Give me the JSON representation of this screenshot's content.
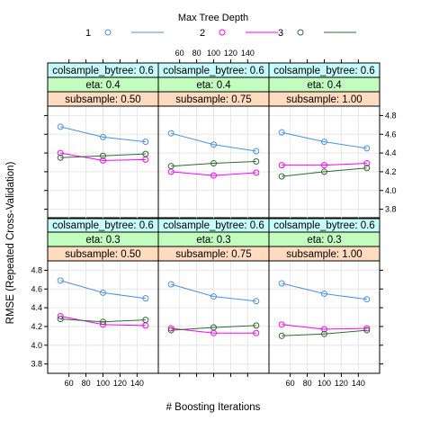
{
  "chart_data": {
    "type": "line",
    "legend": {
      "title": "Max Tree Depth",
      "placement": "top",
      "entries": [
        {
          "name": "1",
          "color": "#4a90e2"
        },
        {
          "name": "2",
          "color": "#ff00ff"
        },
        {
          "name": "3",
          "color": "#2e6b2e"
        }
      ]
    },
    "xlabel": "# Boosting Iterations",
    "ylabel": "RMSE (Repeated Cross-Validation)",
    "x": [
      50,
      100,
      150
    ],
    "xlim": [
      35,
      165
    ],
    "ylim": [
      3.7,
      4.9
    ],
    "x_ticks": [
      60,
      80,
      100,
      120,
      140
    ],
    "y_ticks": [
      3.8,
      4.0,
      4.2,
      4.4,
      4.6,
      4.8
    ],
    "grid": true,
    "panels": [
      {
        "row": 0,
        "col": 0,
        "strips": [
          "colsample_bytree: 0.6",
          "eta: 0.3",
          "subsample: 0.50"
        ],
        "series": [
          {
            "name": "1",
            "values": [
              4.69,
              4.56,
              4.5
            ]
          },
          {
            "name": "2",
            "values": [
              4.31,
              4.22,
              4.21
            ]
          },
          {
            "name": "3",
            "values": [
              4.28,
              4.25,
              4.27
            ]
          }
        ]
      },
      {
        "row": 0,
        "col": 1,
        "strips": [
          "colsample_bytree: 0.6",
          "eta: 0.3",
          "subsample: 0.75"
        ],
        "series": [
          {
            "name": "1",
            "values": [
              4.65,
              4.52,
              4.47
            ]
          },
          {
            "name": "2",
            "values": [
              4.18,
              4.13,
              4.13
            ]
          },
          {
            "name": "3",
            "values": [
              4.16,
              4.19,
              4.21
            ]
          }
        ]
      },
      {
        "row": 0,
        "col": 2,
        "strips": [
          "colsample_bytree: 0.6",
          "eta: 0.3",
          "subsample: 1.00"
        ],
        "series": [
          {
            "name": "1",
            "values": [
              4.66,
              4.55,
              4.49
            ]
          },
          {
            "name": "2",
            "values": [
              4.22,
              4.17,
              4.18
            ]
          },
          {
            "name": "3",
            "values": [
              4.1,
              4.12,
              4.16
            ]
          }
        ]
      },
      {
        "row": 1,
        "col": 0,
        "strips": [
          "colsample_bytree: 0.6",
          "eta: 0.4",
          "subsample: 0.50"
        ],
        "series": [
          {
            "name": "1",
            "values": [
              4.68,
              4.57,
              4.52
            ]
          },
          {
            "name": "2",
            "values": [
              4.4,
              4.32,
              4.33
            ]
          },
          {
            "name": "3",
            "values": [
              4.35,
              4.37,
              4.39
            ]
          }
        ]
      },
      {
        "row": 1,
        "col": 1,
        "strips": [
          "colsample_bytree: 0.6",
          "eta: 0.4",
          "subsample: 0.75"
        ],
        "series": [
          {
            "name": "1",
            "values": [
              4.61,
              4.49,
              4.42
            ]
          },
          {
            "name": "2",
            "values": [
              4.2,
              4.16,
              4.19
            ]
          },
          {
            "name": "3",
            "values": [
              4.26,
              4.29,
              4.31
            ]
          }
        ]
      },
      {
        "row": 1,
        "col": 2,
        "strips": [
          "colsample_bytree: 0.6",
          "eta: 0.4",
          "subsample: 1.00"
        ],
        "series": [
          {
            "name": "1",
            "values": [
              4.62,
              4.52,
              4.45
            ]
          },
          {
            "name": "2",
            "values": [
              4.27,
              4.27,
              4.29
            ]
          },
          {
            "name": "3",
            "values": [
              4.15,
              4.2,
              4.24
            ]
          }
        ]
      }
    ],
    "strip_colors": [
      "#c6fcfc",
      "#c3fcbf",
      "#ffdbbf"
    ]
  }
}
